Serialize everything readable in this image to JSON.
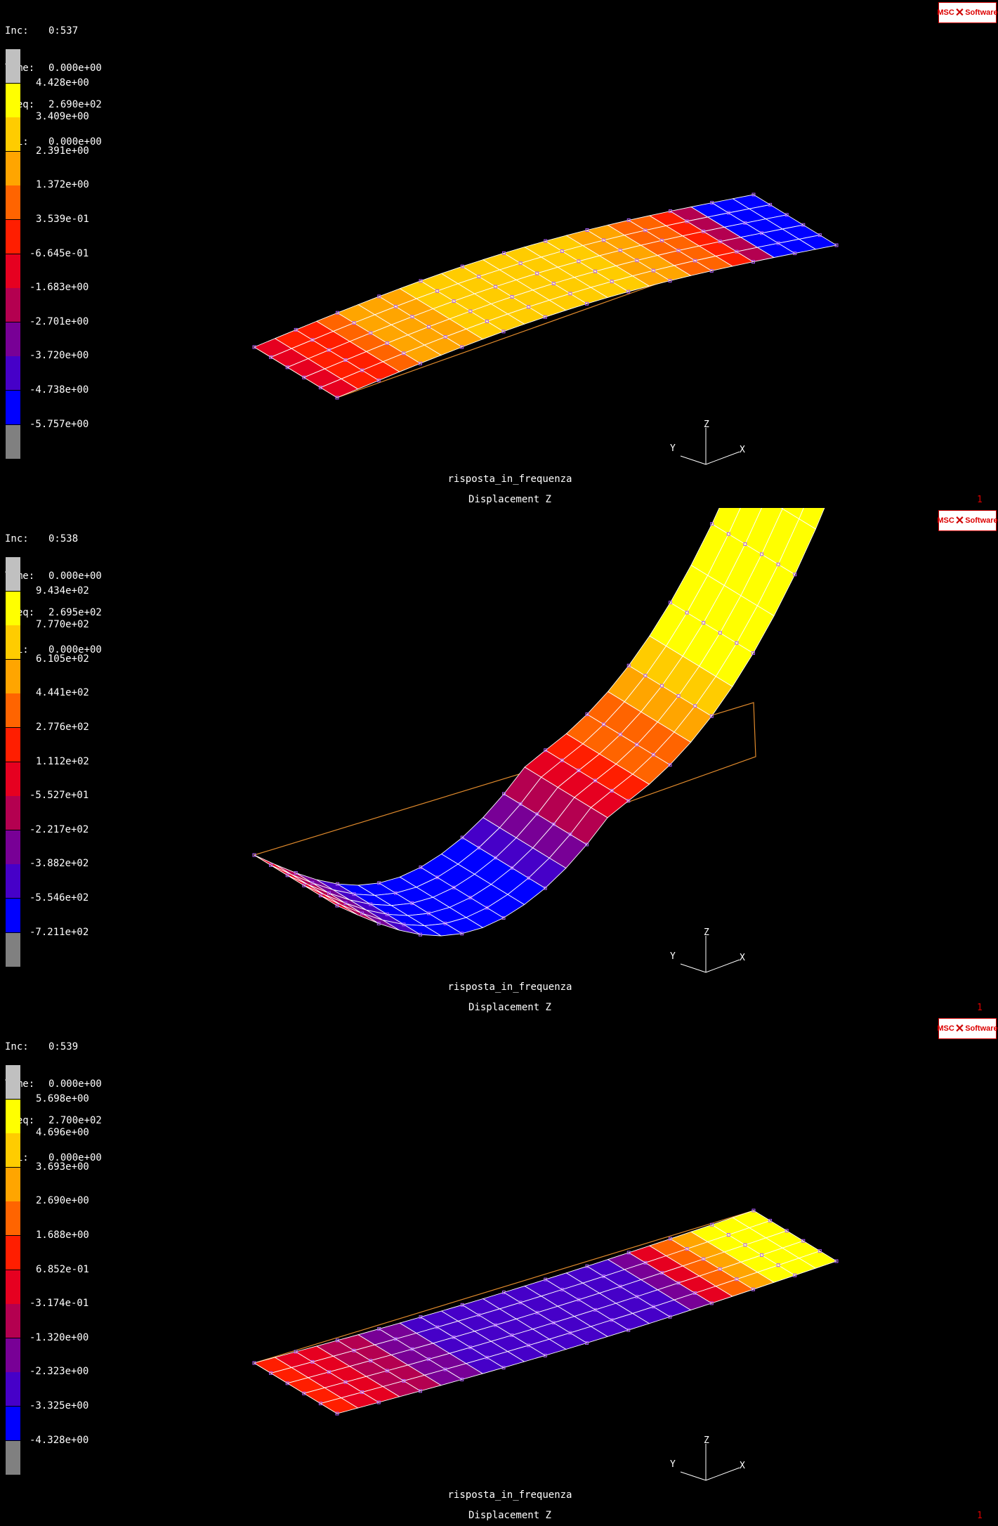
{
  "logo_text": [
    "MSC",
    "Software"
  ],
  "panels": [
    {
      "inc_label": "Inc:",
      "inc_value": "0:537",
      "time_label": "Time:",
      "time_value": "0.000e+00",
      "freq_label": "Freq:",
      "freq_value": "2.690e+02",
      "phi_label": "Phi:",
      "phi_value": "0.000e+00",
      "legend_values": [
        "4.428e+00",
        "3.409e+00",
        "2.391e+00",
        "1.372e+00",
        "3.539e-01",
        "-6.645e-01",
        "-1.683e+00",
        "-2.701e+00",
        "-3.720e+00",
        "-4.738e+00",
        "-5.757e+00"
      ],
      "job_name": "risposta_in_frequenza",
      "result_name": "Displacement Z",
      "counter": "1",
      "triad_labels": [
        "Z",
        "Y",
        "X"
      ]
    },
    {
      "inc_label": "Inc:",
      "inc_value": "0:538",
      "time_label": "Time:",
      "time_value": "0.000e+00",
      "freq_label": "Freq:",
      "freq_value": "2.695e+02",
      "phi_label": "Phi:",
      "phi_value": "0.000e+00",
      "legend_values": [
        "9.434e+02",
        "7.770e+02",
        "6.105e+02",
        "4.441e+02",
        "2.776e+02",
        "1.112e+02",
        "-5.527e+01",
        "-2.217e+02",
        "-3.882e+02",
        "-5.546e+02",
        "-7.211e+02"
      ],
      "job_name": "risposta_in_frequenza",
      "result_name": "Displacement Z",
      "counter": "1",
      "triad_labels": [
        "Z",
        "Y",
        "X"
      ]
    },
    {
      "inc_label": "Inc:",
      "inc_value": "0:539",
      "time_label": "Time:",
      "time_value": "0.000e+00",
      "freq_label": "Freq:",
      "freq_value": "2.700e+02",
      "phi_label": "Phi:",
      "phi_value": "0.000e+00",
      "legend_values": [
        "5.698e+00",
        "4.696e+00",
        "3.693e+00",
        "2.690e+00",
        "1.688e+00",
        "6.852e-01",
        "-3.174e-01",
        "-1.320e+00",
        "-2.323e+00",
        "-3.325e+00",
        "-4.328e+00"
      ],
      "job_name": "risposta_in_frequenza",
      "result_name": "Displacement Z",
      "counter": "1",
      "triad_labels": [
        "Z",
        "Y",
        "X"
      ]
    }
  ],
  "legend_colors": [
    "#c0c0c0",
    "#ffff00",
    "#ffcc00",
    "#ffa500",
    "#ff6400",
    "#ff1e00",
    "#e60020",
    "#b40050",
    "#780096",
    "#4600c8",
    "#0000ff",
    "#808080"
  ],
  "mesh_line_color": "#ffffff",
  "node_color": "#b060ff",
  "outline_color": "#e08a2c"
}
